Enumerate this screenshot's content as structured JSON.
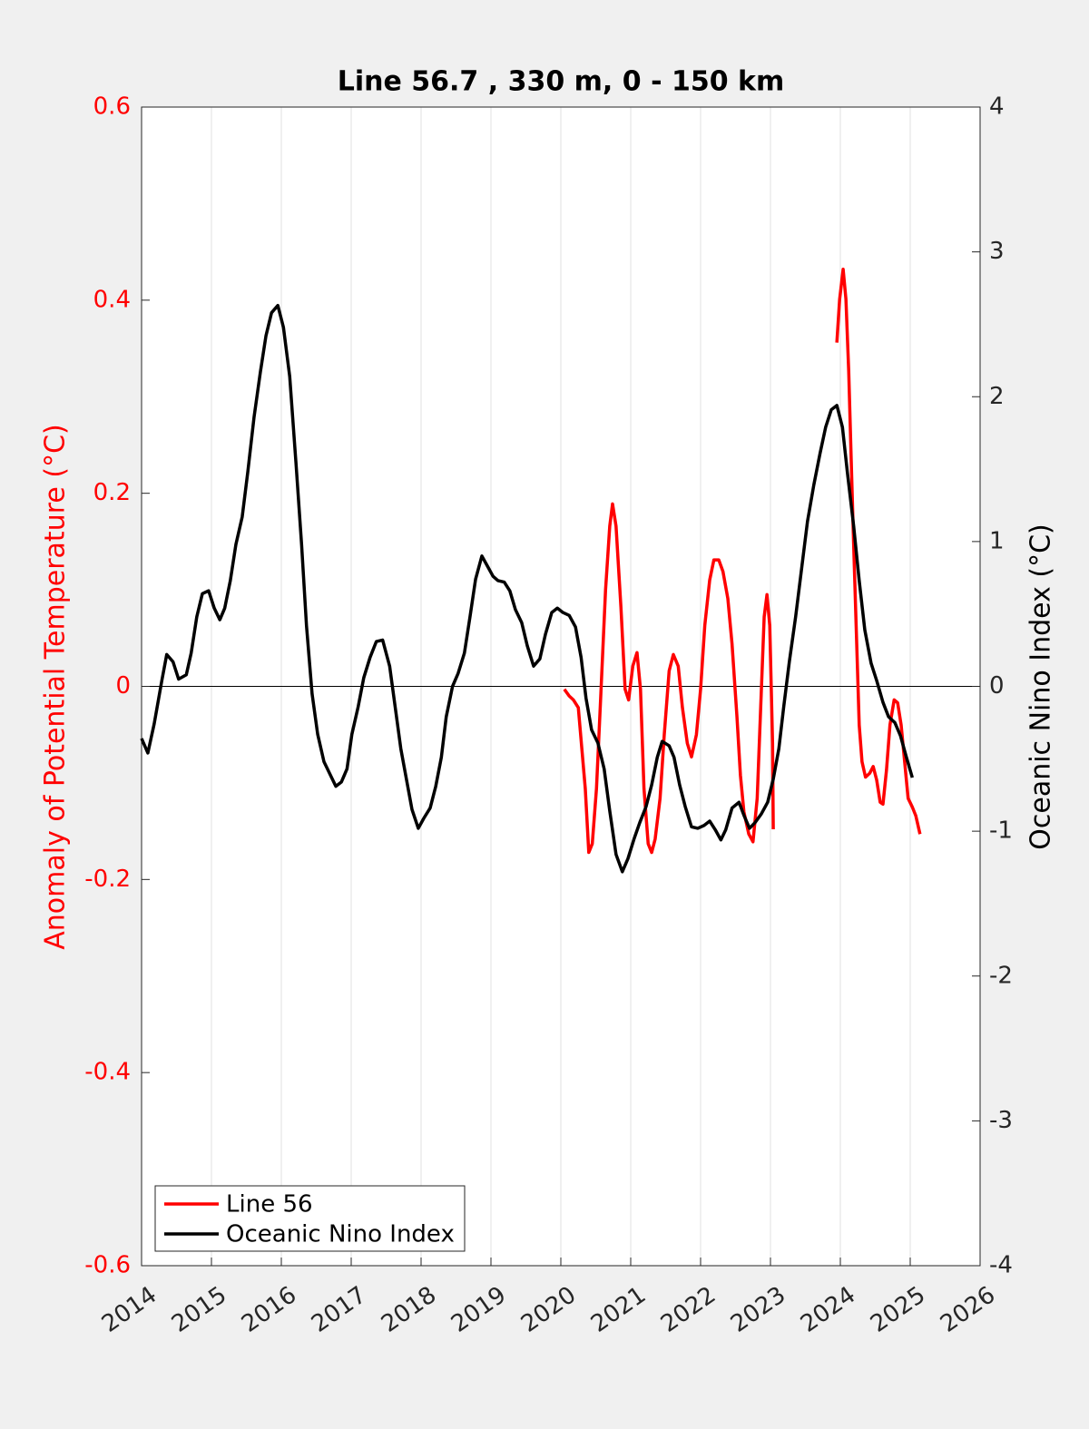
{
  "chart_data": {
    "type": "line",
    "title": "Line 56.7 , 330 m, 0 - 150 km",
    "y_label": "Anomaly of Potential Temperature (°C)",
    "y2_label": "Oceanic Nino Index (°C)",
    "xlim": [
      2014,
      2026
    ],
    "xticks": [
      2014,
      2015,
      2016,
      2017,
      2018,
      2019,
      2020,
      2021,
      2022,
      2023,
      2024,
      2025,
      2026
    ],
    "ylim": [
      -0.6,
      0.6
    ],
    "yticks": [
      -0.6,
      -0.4,
      -0.2,
      0,
      0.2,
      0.4,
      0.6
    ],
    "y2lim": [
      -4,
      4
    ],
    "y2ticks": [
      -4,
      -3,
      -2,
      -1,
      0,
      1,
      2,
      3,
      4
    ],
    "y_color": "#ff0000",
    "grid": true,
    "legend": "lower-left",
    "series": [
      {
        "name": "Line 56",
        "color": "#ff0000",
        "x": [
          2020.05,
          2020.12,
          2020.18,
          2020.25,
          2020.3,
          2020.35,
          2020.4,
          2020.45,
          2020.51,
          2020.57,
          2020.64,
          2020.7,
          2020.74,
          2020.79,
          2020.86,
          2020.92,
          2020.97,
          2021.03,
          2021.09,
          2021.14,
          2021.19,
          2021.25,
          2021.3,
          2021.35,
          2021.42,
          2021.48,
          2021.55,
          2021.61,
          2021.68,
          2021.74,
          2021.81,
          2021.87,
          2021.94,
          2022.0,
          2022.06,
          2022.13,
          2022.19,
          2022.26,
          2022.32,
          2022.39,
          2022.45,
          2022.52,
          2022.57,
          2022.62,
          2022.69,
          2022.75,
          2022.81,
          2022.86,
          2022.91,
          2022.95,
          2022.99,
          2023.03,
          2023.04,
          2023.5,
          2023.95,
          2023.99,
          2024.04,
          2024.08,
          2024.12,
          2024.16,
          2024.19,
          2024.23,
          2024.27,
          2024.31,
          2024.36,
          2024.42,
          2024.47,
          2024.52,
          2024.57,
          2024.61,
          2024.66,
          2024.71,
          2024.77,
          2024.82,
          2024.87,
          2024.92,
          2024.97,
          2025.03,
          2025.08,
          2025.14
        ],
        "values": [
          -0.003,
          -0.01,
          -0.014,
          -0.022,
          -0.064,
          -0.106,
          -0.172,
          -0.163,
          -0.106,
          -0.012,
          0.1,
          0.166,
          0.189,
          0.166,
          0.082,
          -0.003,
          -0.014,
          0.021,
          0.035,
          -0.003,
          -0.106,
          -0.163,
          -0.172,
          -0.158,
          -0.116,
          -0.05,
          0.016,
          0.033,
          0.021,
          -0.022,
          -0.059,
          -0.073,
          -0.05,
          -0.003,
          0.063,
          0.11,
          0.131,
          0.131,
          0.119,
          0.091,
          0.044,
          -0.031,
          -0.092,
          -0.13,
          -0.153,
          -0.161,
          -0.116,
          -0.022,
          0.072,
          0.095,
          0.063,
          -0.059,
          -0.148,
          null,
          0.356,
          0.401,
          0.432,
          0.401,
          0.326,
          0.223,
          0.148,
          0.054,
          -0.04,
          -0.078,
          -0.094,
          -0.09,
          -0.083,
          -0.097,
          -0.12,
          -0.122,
          -0.087,
          -0.04,
          -0.014,
          -0.017,
          -0.04,
          -0.078,
          -0.116,
          -0.125,
          -0.134,
          -0.153
        ]
      },
      {
        "name": "Oceanic Nino Index",
        "color": "#000000",
        "axis": "y2",
        "x": [
          2014.0,
          2014.09,
          2014.18,
          2014.29,
          2014.36,
          2014.45,
          2014.53,
          2014.64,
          2014.71,
          2014.79,
          2014.87,
          2014.96,
          2015.04,
          2015.12,
          2015.19,
          2015.27,
          2015.35,
          2015.44,
          2015.52,
          2015.61,
          2015.7,
          2015.78,
          2015.86,
          2015.95,
          2016.03,
          2016.12,
          2016.21,
          2016.29,
          2016.36,
          2016.44,
          2016.52,
          2016.61,
          2016.7,
          2016.78,
          2016.86,
          2016.94,
          2017.01,
          2017.1,
          2017.18,
          2017.27,
          2017.36,
          2017.45,
          2017.55,
          2017.64,
          2017.71,
          2017.79,
          2017.87,
          2017.96,
          2018.04,
          2018.13,
          2018.21,
          2018.29,
          2018.36,
          2018.45,
          2018.53,
          2018.62,
          2018.7,
          2018.78,
          2018.87,
          2018.95,
          2019.03,
          2019.1,
          2019.19,
          2019.27,
          2019.35,
          2019.44,
          2019.52,
          2019.61,
          2019.7,
          2019.78,
          2019.87,
          2019.95,
          2020.03,
          2020.12,
          2020.21,
          2020.29,
          2020.36,
          2020.44,
          2020.53,
          2020.62,
          2020.7,
          2020.79,
          2020.88,
          2020.96,
          2021.05,
          2021.13,
          2021.22,
          2021.3,
          2021.38,
          2021.45,
          2021.55,
          2021.62,
          2021.7,
          2021.78,
          2021.87,
          2021.96,
          2022.05,
          2022.13,
          2022.21,
          2022.29,
          2022.36,
          2022.45,
          2022.55,
          2022.62,
          2022.7,
          2022.78,
          2022.87,
          2022.96,
          2023.04,
          2023.12,
          2023.19,
          2023.27,
          2023.36,
          2023.45,
          2023.53,
          2023.62,
          2023.71,
          2023.79,
          2023.87,
          2023.95,
          2024.03,
          2024.1,
          2024.19,
          2024.27,
          2024.35,
          2024.44,
          2024.52,
          2024.61,
          2024.69,
          2024.78,
          2024.86,
          2024.94,
          2025.03
        ],
        "values": [
          -0.36,
          -0.46,
          -0.26,
          0.04,
          0.22,
          0.17,
          0.05,
          0.08,
          0.23,
          0.48,
          0.64,
          0.66,
          0.54,
          0.46,
          0.54,
          0.73,
          0.98,
          1.17,
          1.48,
          1.86,
          2.17,
          2.42,
          2.58,
          2.63,
          2.48,
          2.14,
          1.54,
          0.98,
          0.42,
          -0.05,
          -0.33,
          -0.52,
          -0.61,
          -0.69,
          -0.66,
          -0.57,
          -0.33,
          -0.14,
          0.06,
          0.2,
          0.31,
          0.32,
          0.14,
          -0.18,
          -0.43,
          -0.64,
          -0.85,
          -0.98,
          -0.91,
          -0.84,
          -0.69,
          -0.49,
          -0.21,
          0,
          0.09,
          0.23,
          0.48,
          0.74,
          0.9,
          0.83,
          0.76,
          0.73,
          0.72,
          0.66,
          0.53,
          0.44,
          0.28,
          0.14,
          0.19,
          0.36,
          0.51,
          0.54,
          0.51,
          0.49,
          0.41,
          0.2,
          -0.08,
          -0.3,
          -0.39,
          -0.57,
          -0.86,
          -1.16,
          -1.28,
          -1.19,
          -1.05,
          -0.94,
          -0.83,
          -0.68,
          -0.49,
          -0.38,
          -0.41,
          -0.49,
          -0.68,
          -0.83,
          -0.97,
          -0.98,
          -0.96,
          -0.93,
          -0.99,
          -1.06,
          -0.99,
          -0.84,
          -0.8,
          -0.89,
          -0.98,
          -0.94,
          -0.88,
          -0.8,
          -0.64,
          -0.43,
          -0.14,
          0.17,
          0.48,
          0.83,
          1.14,
          1.39,
          1.61,
          1.79,
          1.91,
          1.94,
          1.79,
          1.48,
          1.11,
          0.73,
          0.39,
          0.16,
          0.04,
          -0.11,
          -0.21,
          -0.25,
          -0.34,
          -0.48,
          -0.63
        ]
      }
    ]
  }
}
